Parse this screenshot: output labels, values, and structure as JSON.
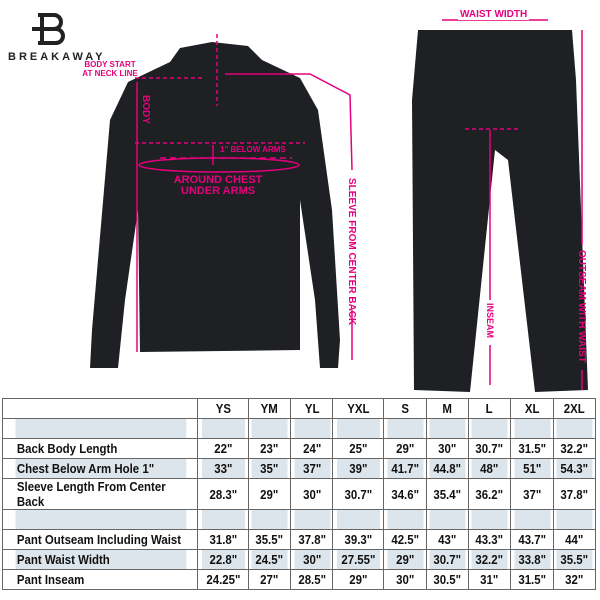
{
  "brand": "BREAKAWAY",
  "colors": {
    "accent": "#e6007e",
    "garment": "#1f2023",
    "alt_row": "#dce5ec"
  },
  "annotations": {
    "body_start": "BODY START AT NECK LINE",
    "body": "BODY",
    "below_arms": "1\" BELOW ARMS",
    "chest_line1": "AROUND CHEST",
    "chest_line2": "UNDER ARMS",
    "sleeve": "SLEEVE FROM CENTER BACK",
    "waist": "WAIST WIDTH",
    "inseam": "INSEAM",
    "outseam": "OUTSEAM WITH WAIST"
  },
  "table": {
    "sizes": [
      "YS",
      "YM",
      "YL",
      "YXL",
      "S",
      "M",
      "L",
      "XL",
      "2XL"
    ],
    "rows": [
      {
        "label": "",
        "values": [
          "",
          "",
          "",
          "",
          "",
          "",
          "",
          "",
          ""
        ],
        "alt": true
      },
      {
        "label": "Back Body Length",
        "values": [
          "22\"",
          "23\"",
          "24\"",
          "25\"",
          "29\"",
          "30\"",
          "30.7\"",
          "31.5\"",
          "32.2\""
        ],
        "alt": false
      },
      {
        "label": "Chest Below Arm Hole 1\"",
        "values": [
          "33\"",
          "35\"",
          "37\"",
          "39\"",
          "41.7\"",
          "44.8\"",
          "48\"",
          "51\"",
          "54.3\""
        ],
        "alt": true
      },
      {
        "label": "Sleeve Length From Center Back",
        "values": [
          "28.3\"",
          "29\"",
          "30\"",
          "30.7\"",
          "34.6\"",
          "35.4\"",
          "36.2\"",
          "37\"",
          "37.8\""
        ],
        "alt": false
      },
      {
        "label": "",
        "values": [
          "",
          "",
          "",
          "",
          "",
          "",
          "",
          "",
          ""
        ],
        "alt": true
      },
      {
        "label": "Pant Outseam Including Waist",
        "values": [
          "31.8\"",
          "35.5\"",
          "37.8\"",
          "39.3\"",
          "42.5\"",
          "43\"",
          "43.3\"",
          "43.7\"",
          "44\""
        ],
        "alt": false
      },
      {
        "label": "Pant Waist Width",
        "values": [
          "22.8\"",
          "24.5\"",
          "30\"",
          "27.55\"",
          "29\"",
          "30.7\"",
          "32.2\"",
          "33.8\"",
          "35.5\""
        ],
        "alt": true
      },
      {
        "label": "Pant Inseam",
        "values": [
          "24.25\"",
          "27\"",
          "28.5\"",
          "29\"",
          "30\"",
          "30.5\"",
          "31\"",
          "31.5\"",
          "32\""
        ],
        "alt": false
      }
    ]
  }
}
